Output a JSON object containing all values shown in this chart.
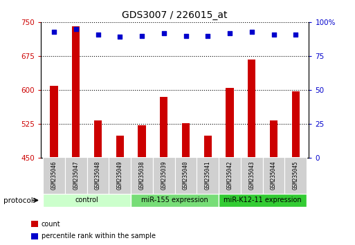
{
  "title": "GDS3007 / 226015_at",
  "categories": [
    "GSM235046",
    "GSM235047",
    "GSM235048",
    "GSM235049",
    "GSM235038",
    "GSM235039",
    "GSM235040",
    "GSM235041",
    "GSM235042",
    "GSM235043",
    "GSM235044",
    "GSM235045"
  ],
  "bar_values": [
    610,
    740,
    533,
    500,
    523,
    585,
    527,
    500,
    605,
    668,
    533,
    597
  ],
  "percentile_values": [
    93,
    95,
    91,
    89,
    90,
    92,
    90,
    90,
    92,
    93,
    91,
    91
  ],
  "bar_color": "#cc0000",
  "percentile_color": "#0000cc",
  "ylim_left": [
    450,
    750
  ],
  "yticks_left": [
    450,
    525,
    600,
    675,
    750
  ],
  "ylim_right": [
    0,
    100
  ],
  "yticks_right": [
    0,
    25,
    50,
    75,
    100
  ],
  "yticklabels_right": [
    "0",
    "25",
    "50",
    "75",
    "100%"
  ],
  "groups": [
    {
      "label": "control",
      "start": 0,
      "end": 4,
      "color": "#ccffcc"
    },
    {
      "label": "miR-155 expression",
      "start": 4,
      "end": 8,
      "color": "#77dd77"
    },
    {
      "label": "miR-K12-11 expression",
      "start": 8,
      "end": 12,
      "color": "#33cc33"
    }
  ],
  "protocol_label": "protocol",
  "legend_items": [
    {
      "color": "#cc0000",
      "label": "count"
    },
    {
      "color": "#0000cc",
      "label": "percentile rank within the sample"
    }
  ],
  "bar_width": 0.35,
  "ylabel_left_color": "#cc0000",
  "ylabel_right_color": "#0000cc"
}
